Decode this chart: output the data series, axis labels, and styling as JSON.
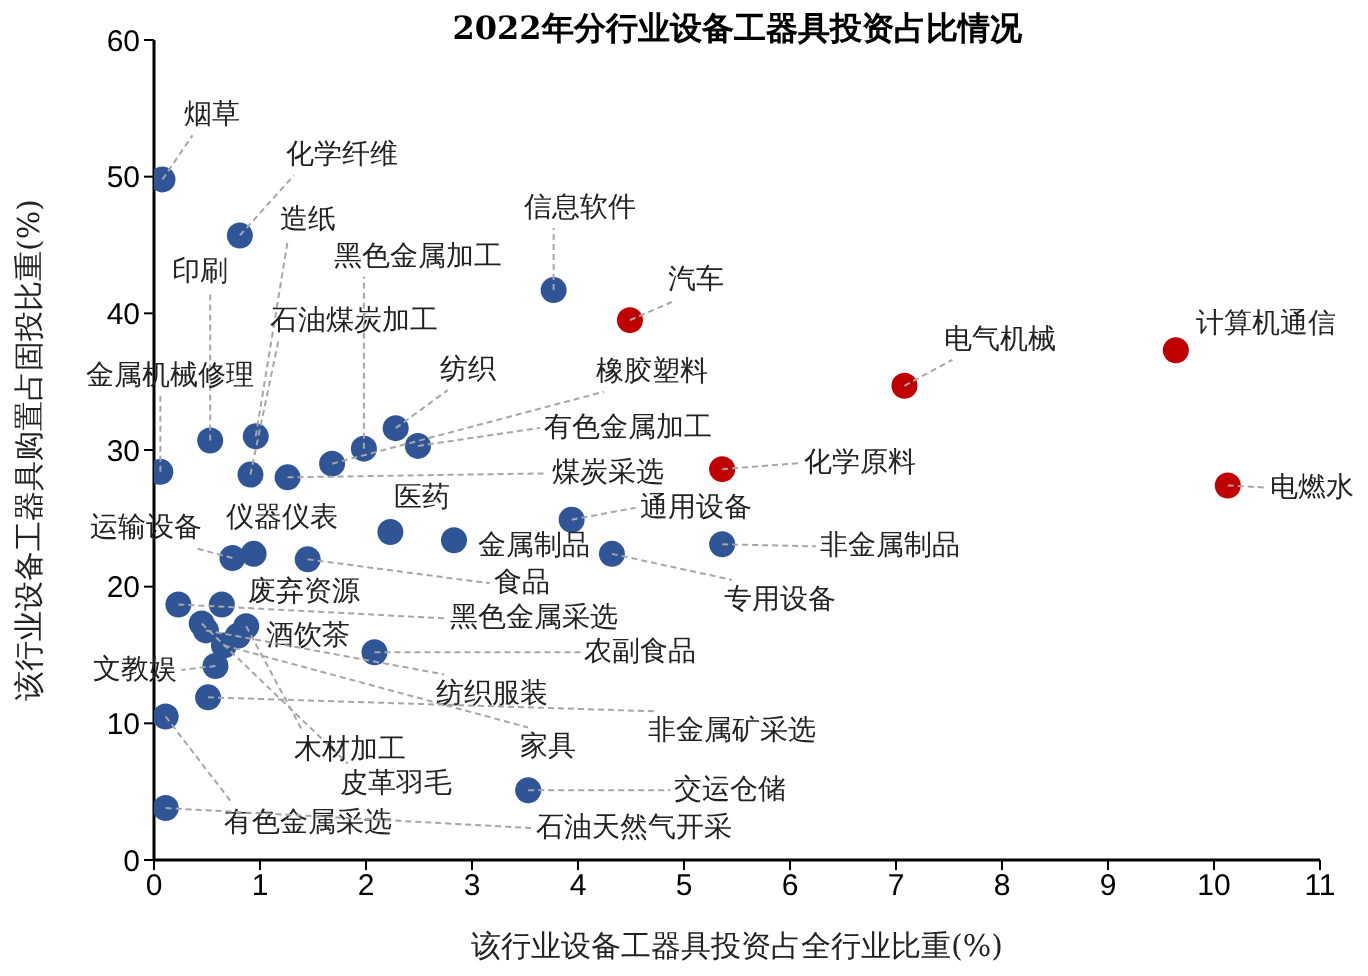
{
  "chart_data": {
    "type": "scatter",
    "title": "2022年分行业设备工器具投资占比情况",
    "xlabel": "该行业设备工器具投资占全行业比重(%)",
    "ylabel": "该行业设备工器具购置占固投比重(%)",
    "xlim": [
      0,
      11
    ],
    "xticks": [
      0,
      1,
      2,
      3,
      4,
      5,
      6,
      7,
      8,
      9,
      10,
      11
    ],
    "ylim": [
      0,
      60
    ],
    "yticks": [
      0,
      10,
      20,
      30,
      40,
      50,
      60
    ],
    "grid": false,
    "marker": "circle",
    "series": [
      {
        "color": "#2f5597",
        "x": [
          0.08,
          0.81,
          0.96,
          0.53,
          0.06,
          0.91,
          1.98,
          2.28,
          1.68,
          2.49,
          1.26,
          3.77,
          3.94,
          4.32,
          5.36,
          2.83,
          2.23,
          0.74,
          0.94,
          1.45,
          0.23,
          0.64,
          2.08,
          0.45,
          0.87,
          0.79,
          0.66,
          0.49,
          0.58,
          0.51,
          0.11,
          0.11,
          3.53
        ],
        "values": [
          49.8,
          45.7,
          31.0,
          30.7,
          28.4,
          28.2,
          30.1,
          31.6,
          29.0,
          30.3,
          28.0,
          41.7,
          24.9,
          22.4,
          23.1,
          23.4,
          24.0,
          22.1,
          22.4,
          22.0,
          18.7,
          18.7,
          15.2,
          17.3,
          17.1,
          16.4,
          15.7,
          16.8,
          14.2,
          11.9,
          10.5,
          3.8,
          5.1
        ],
        "value_labels": [
          "烟草",
          "化学纤维",
          "造纸",
          "印刷",
          "金属机械修理",
          "石油煤炭加工",
          "黑色金属加工",
          "纺织",
          "橡胶塑料",
          "有色金属加工",
          "煤炭采选",
          "信息软件",
          "通用设备",
          "专用设备",
          "非金属制品",
          "金属制品",
          "医药",
          "运输设备",
          "仪器仪表",
          "食品",
          "黑色金属采选",
          "废弃资源",
          "农副食品",
          "皮革羽毛",
          "木材加工",
          "酒饮茶",
          "家具",
          "纺织服装",
          "文教娱",
          "非金属矿采选",
          "有色金属采选",
          "石油天然气开采",
          "交运仓储"
        ]
      },
      {
        "color": "#c00000",
        "x": [
          4.49,
          7.08,
          9.64,
          10.13,
          5.36
        ],
        "values": [
          39.5,
          34.7,
          37.3,
          27.4,
          28.6
        ],
        "value_labels": [
          "汽车",
          "电气机械",
          "计算机通信",
          "电燃水",
          "化学原料"
        ]
      }
    ]
  }
}
